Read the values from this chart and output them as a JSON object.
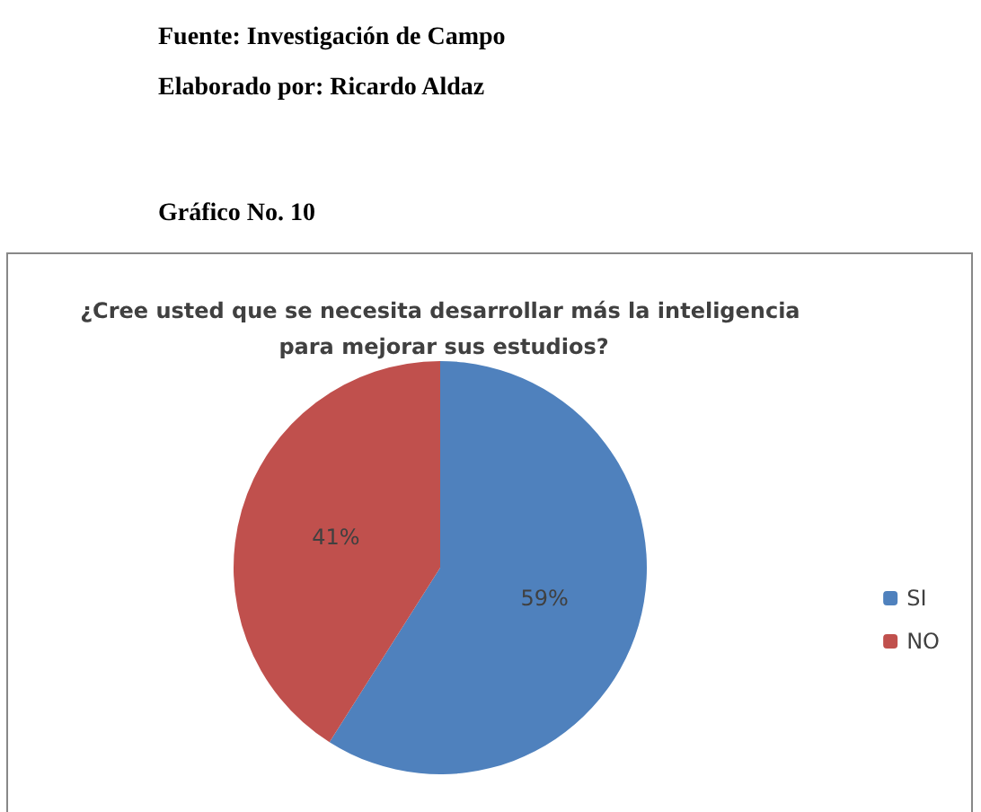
{
  "chart_data": {
    "type": "pie",
    "title": "¿Cree usted que se necesita desarrollar más la inteligencia para mejorar sus estudios?",
    "categories": [
      "SI",
      "NO"
    ],
    "values": [
      59,
      41
    ],
    "colors": [
      "#4f81bd",
      "#c0504d"
    ],
    "value_labels": [
      "59%",
      "41%"
    ],
    "legend": "right",
    "annotations": [
      "Fuente: Investigación de Campo",
      "Elaborado por: Ricardo Aldaz",
      "Gráfico No. 10"
    ]
  }
}
